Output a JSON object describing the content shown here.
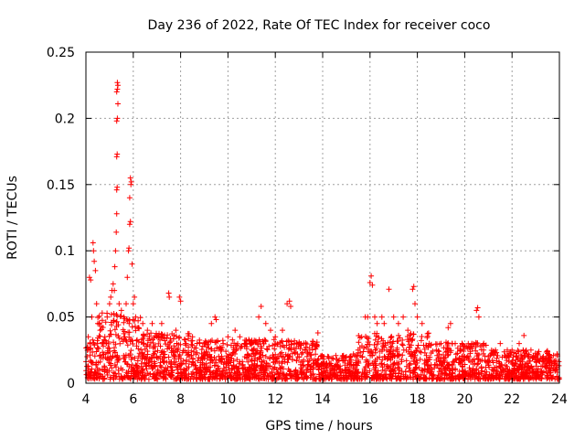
{
  "chart_data": {
    "type": "scatter",
    "title": "Day 236 of 2022, Rate Of TEC Index for receiver coco",
    "xlabel": "GPS time / hours",
    "ylabel": "ROTI / TECUs",
    "xlim": [
      4,
      24
    ],
    "ylim": [
      0,
      0.25
    ],
    "x_ticks": [
      4,
      6,
      8,
      10,
      12,
      14,
      16,
      18,
      20,
      22,
      24
    ],
    "x_tick_labels": [
      "4",
      "6",
      "8",
      "10",
      "12",
      "14",
      "16",
      "18",
      "20",
      "22",
      "24"
    ],
    "y_ticks": [
      0,
      0.05,
      0.1,
      0.15,
      0.2,
      0.25
    ],
    "y_tick_labels": [
      "0",
      "0.05",
      "0.1",
      "0.15",
      "0.2",
      "0.25"
    ],
    "grid": true,
    "marker": "+",
    "color": "#ff0000",
    "series": [
      {
        "points": [
          [
            4.05,
            0.02
          ],
          [
            4.1,
            0.035
          ],
          [
            4.15,
            0.08
          ],
          [
            4.2,
            0.078
          ],
          [
            4.25,
            0.05
          ],
          [
            4.3,
            0.106
          ],
          [
            4.32,
            0.1
          ],
          [
            4.35,
            0.092
          ],
          [
            4.4,
            0.085
          ],
          [
            4.45,
            0.06
          ],
          [
            4.5,
            0.045
          ],
          [
            4.6,
            0.04
          ],
          [
            4.7,
            0.03
          ],
          [
            4.8,
            0.035
          ],
          [
            4.9,
            0.05
          ],
          [
            5.0,
            0.06
          ],
          [
            5.05,
            0.065
          ],
          [
            5.1,
            0.07
          ],
          [
            5.15,
            0.075
          ],
          [
            5.2,
            0.07
          ],
          [
            5.22,
            0.088
          ],
          [
            5.25,
            0.1
          ],
          [
            5.28,
            0.114
          ],
          [
            5.3,
            0.128
          ],
          [
            5.3,
            0.146
          ],
          [
            5.32,
            0.148
          ],
          [
            5.3,
            0.171
          ],
          [
            5.32,
            0.173
          ],
          [
            5.3,
            0.198
          ],
          [
            5.33,
            0.2
          ],
          [
            5.35,
            0.211
          ],
          [
            5.3,
            0.22
          ],
          [
            5.33,
            0.222
          ],
          [
            5.35,
            0.225
          ],
          [
            5.33,
            0.227
          ],
          [
            5.4,
            0.06
          ],
          [
            5.5,
            0.055
          ],
          [
            5.6,
            0.05
          ],
          [
            5.7,
            0.06
          ],
          [
            5.75,
            0.08
          ],
          [
            5.8,
            0.1
          ],
          [
            5.82,
            0.102
          ],
          [
            5.85,
            0.12
          ],
          [
            5.88,
            0.122
          ],
          [
            5.85,
            0.14
          ],
          [
            5.9,
            0.15
          ],
          [
            5.88,
            0.155
          ],
          [
            5.92,
            0.152
          ],
          [
            5.95,
            0.09
          ],
          [
            6.0,
            0.06
          ],
          [
            6.05,
            0.065
          ],
          [
            6.1,
            0.05
          ],
          [
            6.2,
            0.042
          ],
          [
            6.4,
            0.045
          ],
          [
            6.6,
            0.04
          ],
          [
            6.8,
            0.045
          ],
          [
            7.0,
            0.035
          ],
          [
            7.2,
            0.045
          ],
          [
            7.5,
            0.068
          ],
          [
            7.52,
            0.065
          ],
          [
            7.8,
            0.04
          ],
          [
            7.95,
            0.065
          ],
          [
            8.0,
            0.062
          ],
          [
            8.2,
            0.03
          ],
          [
            8.5,
            0.035
          ],
          [
            8.8,
            0.03
          ],
          [
            9.0,
            0.03
          ],
          [
            9.3,
            0.045
          ],
          [
            9.45,
            0.05
          ],
          [
            9.5,
            0.048
          ],
          [
            9.8,
            0.03
          ],
          [
            10.0,
            0.035
          ],
          [
            10.3,
            0.04
          ],
          [
            10.5,
            0.035
          ],
          [
            10.8,
            0.03
          ],
          [
            11.0,
            0.025
          ],
          [
            11.3,
            0.05
          ],
          [
            11.4,
            0.058
          ],
          [
            11.6,
            0.045
          ],
          [
            11.8,
            0.04
          ],
          [
            12.0,
            0.035
          ],
          [
            12.3,
            0.04
          ],
          [
            12.5,
            0.06
          ],
          [
            12.6,
            0.062
          ],
          [
            12.65,
            0.058
          ],
          [
            12.8,
            0.03
          ],
          [
            13.0,
            0.03
          ],
          [
            13.3,
            0.025
          ],
          [
            13.6,
            0.03
          ],
          [
            13.8,
            0.038
          ],
          [
            14.0,
            0.02
          ],
          [
            14.3,
            0.015
          ],
          [
            14.6,
            0.018
          ],
          [
            15.0,
            0.02
          ],
          [
            15.3,
            0.022
          ],
          [
            15.5,
            0.025
          ],
          [
            15.8,
            0.05
          ],
          [
            15.9,
            0.05
          ],
          [
            16.0,
            0.076
          ],
          [
            16.05,
            0.081
          ],
          [
            16.1,
            0.074
          ],
          [
            16.2,
            0.05
          ],
          [
            16.3,
            0.045
          ],
          [
            16.5,
            0.05
          ],
          [
            16.6,
            0.045
          ],
          [
            16.8,
            0.071
          ],
          [
            17.0,
            0.05
          ],
          [
            17.2,
            0.045
          ],
          [
            17.4,
            0.05
          ],
          [
            17.6,
            0.04
          ],
          [
            17.8,
            0.071
          ],
          [
            17.85,
            0.073
          ],
          [
            17.9,
            0.06
          ],
          [
            18.0,
            0.05
          ],
          [
            18.2,
            0.045
          ],
          [
            18.5,
            0.03
          ],
          [
            18.8,
            0.025
          ],
          [
            19.0,
            0.03
          ],
          [
            19.3,
            0.042
          ],
          [
            19.4,
            0.045
          ],
          [
            19.6,
            0.03
          ],
          [
            19.8,
            0.025
          ],
          [
            20.0,
            0.02
          ],
          [
            20.3,
            0.03
          ],
          [
            20.5,
            0.055
          ],
          [
            20.55,
            0.057
          ],
          [
            20.6,
            0.05
          ],
          [
            20.8,
            0.025
          ],
          [
            21.0,
            0.02
          ],
          [
            21.3,
            0.025
          ],
          [
            21.5,
            0.03
          ],
          [
            21.8,
            0.025
          ],
          [
            22.0,
            0.025
          ],
          [
            22.3,
            0.03
          ],
          [
            22.5,
            0.036
          ],
          [
            22.8,
            0.025
          ],
          [
            23.0,
            0.02
          ],
          [
            23.3,
            0.018
          ],
          [
            23.6,
            0.02
          ],
          [
            23.9,
            0.022
          ]
        ]
      }
    ]
  }
}
